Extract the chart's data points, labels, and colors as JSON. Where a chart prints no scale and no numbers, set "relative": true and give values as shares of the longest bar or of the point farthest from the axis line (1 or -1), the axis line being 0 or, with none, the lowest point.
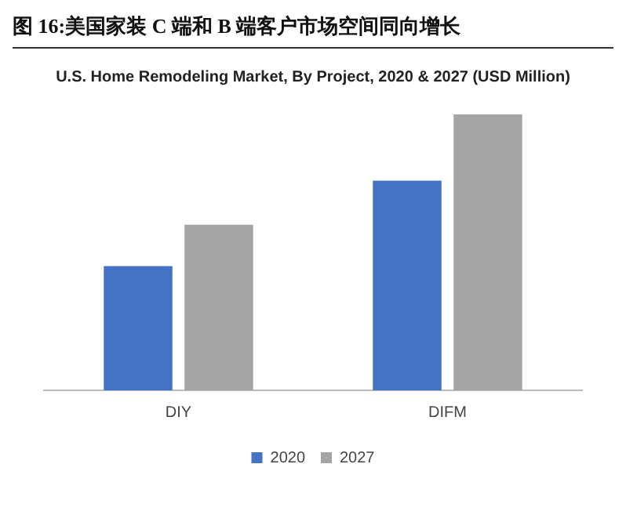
{
  "chart_data": {
    "type": "bar",
    "title": "图 16:美国家装 C 端和 B 端客户市场空间同向增长",
    "subtitle": "U.S. Home Remodeling Market, By Project, 2020 & 2027 (USD Million)",
    "categories": [
      "DIY",
      "DIFM"
    ],
    "relative": true,
    "legend": "bottom",
    "grid": false,
    "series": [
      {
        "name": "2020",
        "color": "#4472c4",
        "values": [
          0.45,
          0.76
        ]
      },
      {
        "name": "2027",
        "color": "#a5a5a5",
        "values": [
          0.6,
          1
        ]
      }
    ]
  }
}
